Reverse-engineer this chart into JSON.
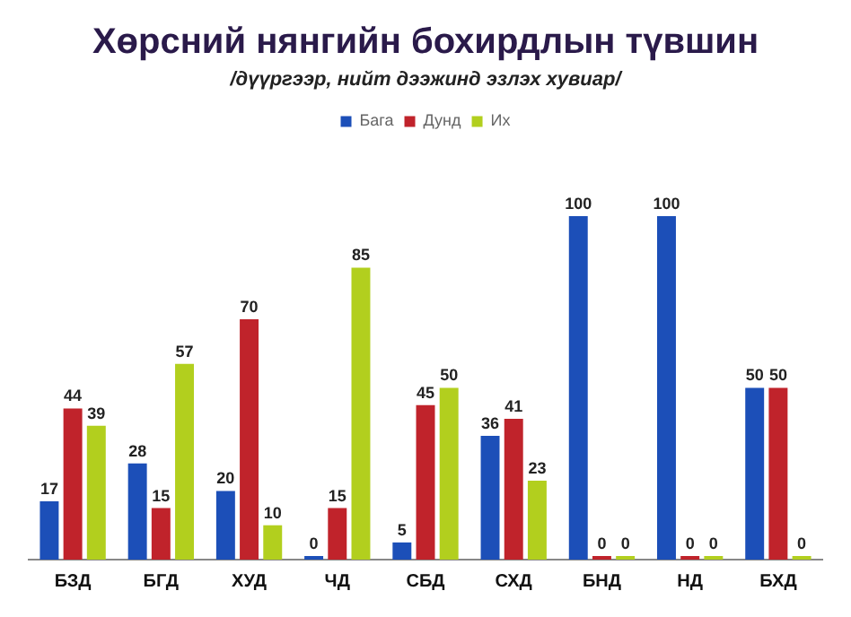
{
  "chart_data": {
    "type": "bar",
    "title": "Хөрсний нянгийн бохирдлын түвшин",
    "subtitle": "/дүүргээр, нийт дээжинд эзлэх хувиар/",
    "categories": [
      "БЗД",
      "БГД",
      "ХУД",
      "ЧД",
      "СБД",
      "СХД",
      "БНД",
      "НД",
      "БХД"
    ],
    "series": [
      {
        "name": "Бага",
        "color": "#1c4fb8",
        "values": [
          17,
          28,
          20,
          0,
          5,
          36,
          100,
          100,
          50
        ]
      },
      {
        "name": "Дунд",
        "color": "#c0232b",
        "values": [
          44,
          15,
          70,
          15,
          45,
          41,
          0,
          0,
          50
        ]
      },
      {
        "name": "Их",
        "color": "#b2cf1e",
        "values": [
          39,
          57,
          10,
          85,
          50,
          23,
          0,
          0,
          0
        ]
      }
    ],
    "data_labels": true,
    "legend": "top",
    "grid": false
  }
}
